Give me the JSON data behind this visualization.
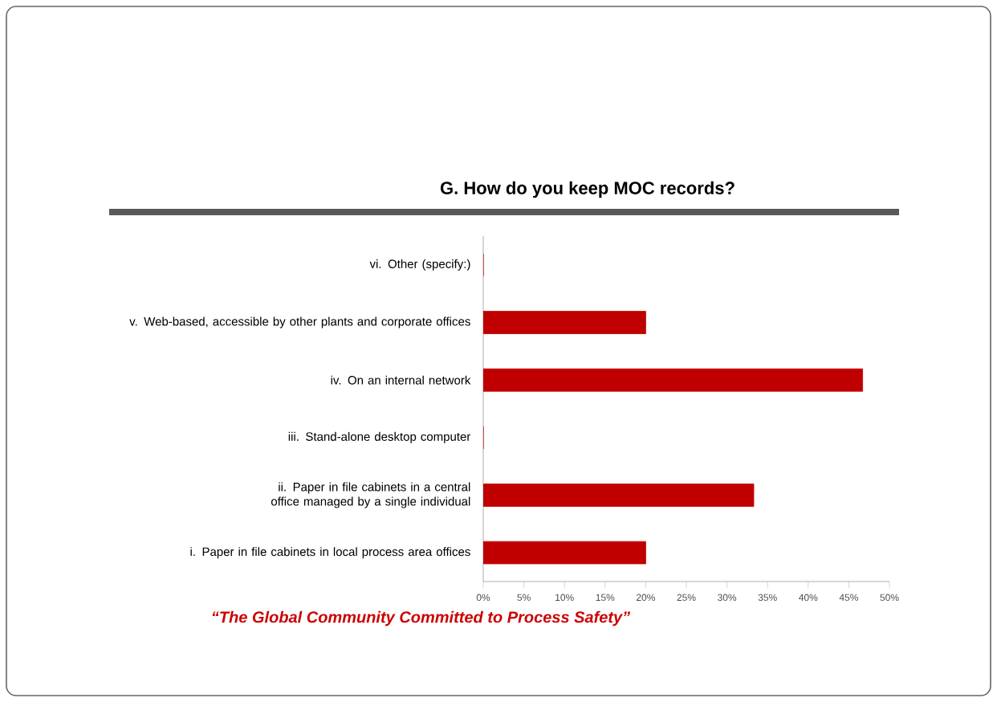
{
  "chart_data": {
    "type": "bar",
    "orientation": "horizontal",
    "title": "G. How do you keep MOC records?",
    "categories": [
      "vi.     Other (specify:)",
      "v.     Web-based, accessible by other plants and corporate offices",
      "iv.     On an internal network",
      "iii.     Stand-alone desktop computer",
      "ii.     Paper in file cabinets in a central office managed by a single individual",
      "i.     Paper in file cabinets in local process area offices"
    ],
    "values": [
      0,
      20,
      46.7,
      0,
      33.3,
      20
    ],
    "color": "#c00000",
    "xlim": [
      0,
      50
    ],
    "xticks": [
      {
        "value": 0,
        "label": "0%"
      },
      {
        "value": 5,
        "label": "5%"
      },
      {
        "value": 10,
        "label": "10%"
      },
      {
        "value": 15,
        "label": "15%"
      },
      {
        "value": 20,
        "label": "20%"
      },
      {
        "value": 25,
        "label": "25%"
      },
      {
        "value": 30,
        "label": "30%"
      },
      {
        "value": 35,
        "label": "35%"
      },
      {
        "value": 40,
        "label": "40%"
      },
      {
        "value": 45,
        "label": "45%"
      },
      {
        "value": 50,
        "label": "50%"
      }
    ],
    "annotations": [
      "“The Global Community Committed to Process Safety”"
    ]
  }
}
